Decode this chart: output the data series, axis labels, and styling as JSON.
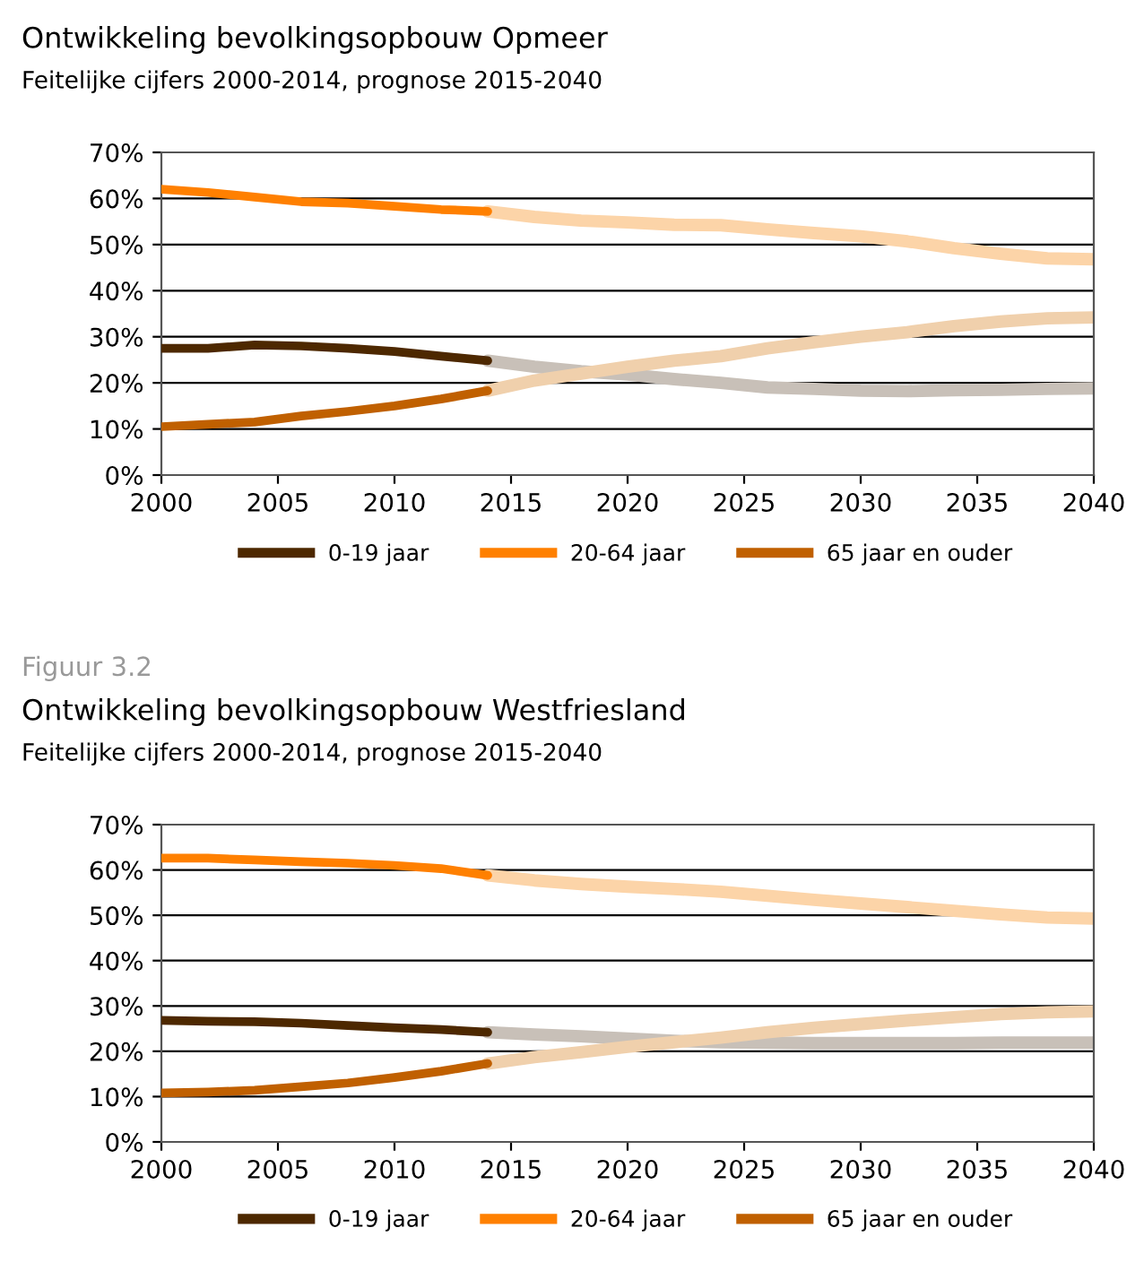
{
  "chart_data": [
    {
      "type": "line",
      "title": "Ontwikkeling bevolkingsopbouw Opmeer",
      "subtitle": "Feitelijke cijfers 2000-2014, prognose 2015-2040",
      "xlim": [
        2000,
        2040
      ],
      "xticks": [
        2000,
        2005,
        2010,
        2015,
        2020,
        2025,
        2030,
        2035,
        2040
      ],
      "ylim": [
        0,
        70
      ],
      "yticks": [
        {
          "value": 0,
          "label": "0%"
        },
        {
          "value": 10,
          "label": "10%"
        },
        {
          "value": 20,
          "label": "20%"
        },
        {
          "value": 30,
          "label": "30%"
        },
        {
          "value": 40,
          "label": "40%"
        },
        {
          "value": 50,
          "label": "50%"
        },
        {
          "value": 60,
          "label": "60%"
        },
        {
          "value": 70,
          "label": "70%"
        }
      ],
      "grid": "y",
      "legend": "bottom",
      "line_style": "solid",
      "series": [
        {
          "name": "0-19 jaar",
          "color": "#4d2800",
          "x": [
            2000,
            2002,
            2004,
            2006,
            2008,
            2010,
            2012,
            2014
          ],
          "values": [
            27.5,
            27.5,
            28.2,
            28,
            27.5,
            26.8,
            25.8,
            24.8
          ]
        },
        {
          "name": "20-64 jaar",
          "color": "#ff8000",
          "x": [
            2000,
            2002,
            2004,
            2006,
            2008,
            2010,
            2012,
            2014
          ],
          "values": [
            62,
            61.3,
            60.3,
            59.3,
            59,
            58.3,
            57.6,
            57.2
          ]
        },
        {
          "name": "65 jaar en ouder",
          "color": "#c06000",
          "x": [
            2000,
            2002,
            2004,
            2006,
            2008,
            2010,
            2012,
            2014
          ],
          "values": [
            10.5,
            11,
            11.5,
            12.8,
            13.8,
            15,
            16.5,
            18.3
          ]
        },
        {
          "color": "#c8c0b8",
          "x": [
            2014,
            2016,
            2018,
            2020,
            2022,
            2024,
            2026,
            2028,
            2030,
            2032,
            2034,
            2036,
            2038,
            2040
          ],
          "values": [
            24.8,
            23.5,
            22.5,
            21.8,
            20.8,
            20,
            19,
            18.7,
            18.3,
            18.2,
            18.4,
            18.5,
            18.7,
            18.8
          ]
        },
        {
          "color": "#fcd4a8",
          "x": [
            2014,
            2016,
            2018,
            2020,
            2022,
            2024,
            2026,
            2028,
            2030,
            2032,
            2034,
            2036,
            2038,
            2040
          ],
          "values": [
            57.2,
            56,
            55.2,
            54.8,
            54.3,
            54.2,
            53.3,
            52.5,
            51.8,
            50.7,
            49.2,
            48,
            47,
            46.8
          ]
        },
        {
          "color": "#f0d0ac",
          "x": [
            2014,
            2016,
            2018,
            2020,
            2022,
            2024,
            2026,
            2028,
            2030,
            2032,
            2034,
            2036,
            2038,
            2040
          ],
          "values": [
            18.3,
            20.5,
            22,
            23.5,
            24.8,
            25.8,
            27.5,
            28.8,
            30,
            31,
            32.3,
            33.3,
            34,
            34.2
          ]
        }
      ]
    },
    {
      "type": "line",
      "title": "Ontwikkeling bevolkingsopbouw Westfriesland",
      "subtitle": "Feitelijke cijfers 2000-2014, prognose 2015-2040",
      "annotations": [
        "Figuur 3.2"
      ],
      "xlim": [
        2000,
        2040
      ],
      "xticks": [
        2000,
        2005,
        2010,
        2015,
        2020,
        2025,
        2030,
        2035,
        2040
      ],
      "ylim": [
        0,
        70
      ],
      "yticks": [
        {
          "value": 0,
          "label": "0%"
        },
        {
          "value": 10,
          "label": "10%"
        },
        {
          "value": 20,
          "label": "20%"
        },
        {
          "value": 30,
          "label": "30%"
        },
        {
          "value": 40,
          "label": "40%"
        },
        {
          "value": 50,
          "label": "50%"
        },
        {
          "value": 60,
          "label": "60%"
        },
        {
          "value": 70,
          "label": "70%"
        }
      ],
      "grid": "y",
      "legend": "bottom",
      "line_style": "solid",
      "series": [
        {
          "name": "0-19 jaar",
          "color": "#4d2800",
          "x": [
            2000,
            2002,
            2004,
            2006,
            2008,
            2010,
            2012,
            2014
          ],
          "values": [
            26.8,
            26.6,
            26.5,
            26.2,
            25.7,
            25.2,
            24.8,
            24.2
          ]
        },
        {
          "name": "20-64 jaar",
          "color": "#ff8000",
          "x": [
            2000,
            2002,
            2004,
            2006,
            2008,
            2010,
            2012,
            2014
          ],
          "values": [
            62.6,
            62.6,
            62.2,
            61.8,
            61.5,
            61,
            60.3,
            58.8
          ]
        },
        {
          "name": "65 jaar en ouder",
          "color": "#c06000",
          "x": [
            2000,
            2002,
            2004,
            2006,
            2008,
            2010,
            2012,
            2014
          ],
          "values": [
            10.8,
            11,
            11.4,
            12.2,
            13,
            14.2,
            15.6,
            17.3
          ]
        },
        {
          "color": "#c8c0b8",
          "x": [
            2014,
            2016,
            2018,
            2020,
            2022,
            2024,
            2026,
            2028,
            2030,
            2032,
            2034,
            2036,
            2038,
            2040
          ],
          "values": [
            24.2,
            23.7,
            23.3,
            22.8,
            22.3,
            22,
            21.9,
            21.8,
            21.8,
            21.8,
            21.8,
            21.9,
            21.9,
            21.9
          ]
        },
        {
          "color": "#fcd4a8",
          "x": [
            2014,
            2016,
            2018,
            2020,
            2022,
            2024,
            2026,
            2028,
            2030,
            2032,
            2034,
            2036,
            2038,
            2040
          ],
          "values": [
            58.8,
            57.7,
            56.9,
            56.3,
            55.8,
            55.2,
            54.3,
            53.4,
            52.6,
            51.8,
            51,
            50.2,
            49.5,
            49.3
          ]
        },
        {
          "color": "#f0d0ac",
          "x": [
            2014,
            2016,
            2018,
            2020,
            2022,
            2024,
            2026,
            2028,
            2030,
            2032,
            2034,
            2036,
            2038,
            2040
          ],
          "values": [
            17.3,
            18.7,
            19.8,
            21,
            22,
            23,
            24.2,
            25.2,
            26,
            26.8,
            27.5,
            28.2,
            28.6,
            28.8
          ]
        }
      ]
    }
  ]
}
